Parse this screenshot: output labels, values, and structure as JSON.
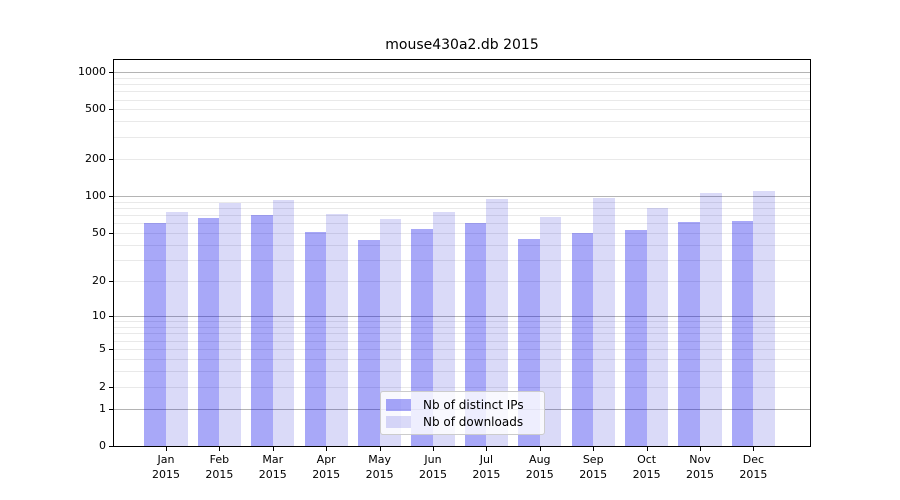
{
  "chart_data": {
    "type": "bar",
    "title": "mouse430a2.db 2015",
    "categories": [
      "Jan",
      "Feb",
      "Mar",
      "Apr",
      "May",
      "Jun",
      "Jul",
      "Aug",
      "Sep",
      "Oct",
      "Nov",
      "Dec"
    ],
    "category_year": "2015",
    "series": [
      {
        "name": "Nb of distinct IPs",
        "color_hex": "#a8a8f8",
        "color_rgba": "rgba(0,0,235,0.34)",
        "values": [
          61,
          66,
          70,
          51,
          44,
          54,
          61,
          45,
          50,
          53,
          62,
          63
        ]
      },
      {
        "name": "Nb of downloads",
        "color_hex": "#dadaf8",
        "color_rgba": "rgba(0,0,210,0.145)",
        "values": [
          74,
          88,
          93,
          72,
          65,
          74,
          95,
          68,
          97,
          80,
          105,
          110
        ]
      }
    ],
    "yscale": "log1p",
    "ylim": [
      0,
      1240
    ],
    "yticks": [
      0,
      1,
      2,
      5,
      10,
      20,
      50,
      100,
      200,
      500,
      1000
    ],
    "grid": {
      "major": [
        1,
        10,
        100,
        1000
      ],
      "minor": [
        2,
        3,
        4,
        5,
        6,
        7,
        8,
        9,
        20,
        30,
        40,
        50,
        60,
        70,
        80,
        90,
        200,
        300,
        400,
        500,
        600,
        700,
        800,
        900
      ]
    },
    "legend_position": "lower center",
    "colors": {
      "grid_major": "#b4b4b4",
      "grid_minor": "#e9e9e9",
      "axis": "#000000"
    }
  }
}
